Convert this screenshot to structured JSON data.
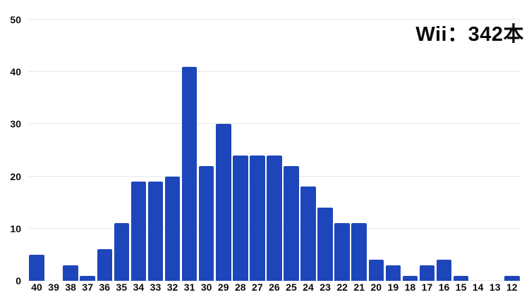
{
  "colors": {
    "bar": "#1e46bb",
    "gridline": "#e8e8e8",
    "text": "#0a0a0a",
    "background": "#ffffff"
  },
  "chart_data": {
    "type": "bar",
    "title": "Wii：342本",
    "categories": [
      "40",
      "39",
      "38",
      "37",
      "36",
      "35",
      "34",
      "33",
      "32",
      "31",
      "30",
      "29",
      "28",
      "27",
      "26",
      "25",
      "24",
      "23",
      "22",
      "21",
      "20",
      "19",
      "18",
      "17",
      "16",
      "15",
      "14",
      "13",
      "12"
    ],
    "values": [
      5,
      0,
      3,
      1,
      6,
      11,
      19,
      19,
      20,
      41,
      22,
      30,
      24,
      24,
      24,
      22,
      18,
      14,
      11,
      11,
      4,
      3,
      1,
      3,
      4,
      1,
      0,
      0,
      1
    ],
    "xlabel": "",
    "ylabel": "",
    "ylim": [
      0,
      50
    ],
    "yticks": [
      0,
      10,
      20,
      30,
      40,
      50
    ],
    "grid": true,
    "legend_position": "none"
  }
}
